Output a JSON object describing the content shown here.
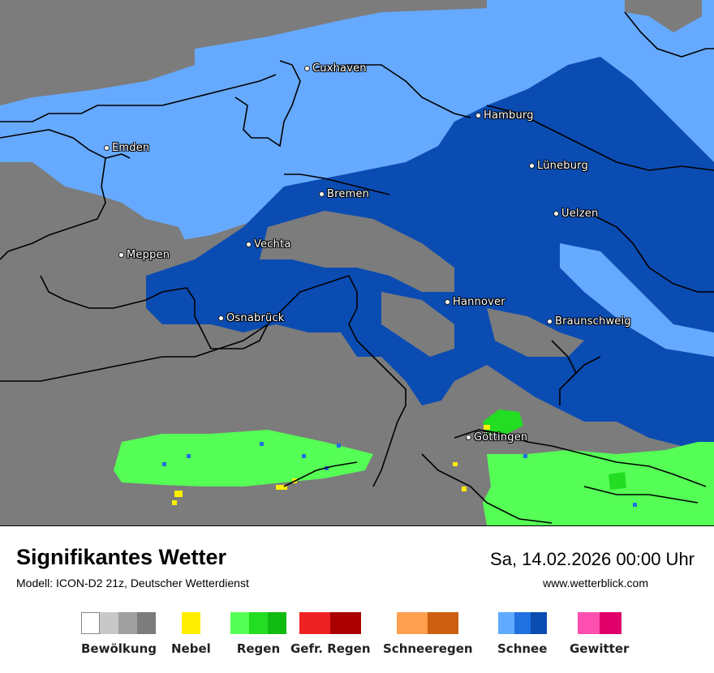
{
  "title": "Signifikantes Wetter",
  "model": "Modell: ICON-D2 21z, Deutscher Wetterdienst",
  "datetime": "Sa, 14.02.2026 00:00 Uhr",
  "website": "www.wetterblick.com",
  "cities": [
    {
      "name": "Cuxhaven"
    },
    {
      "name": "Hamburg"
    },
    {
      "name": "Emden"
    },
    {
      "name": "Lüneburg"
    },
    {
      "name": "Bremen"
    },
    {
      "name": "Uelzen"
    },
    {
      "name": "Vechta"
    },
    {
      "name": "Meppen"
    },
    {
      "name": "Hannover"
    },
    {
      "name": "Osnabrück"
    },
    {
      "name": "Braunschweig"
    },
    {
      "name": "Göttingen"
    }
  ],
  "legend": [
    {
      "label": "Bewölkung",
      "colors": [
        "#ffffff",
        "#c8c8c8",
        "#a0a0a0",
        "#7c7c7c"
      ]
    },
    {
      "label": "Nebel",
      "colors": [
        "#ffee00"
      ]
    },
    {
      "label": "Regen",
      "colors": [
        "#55ff55",
        "#22dd22",
        "#11bb11"
      ]
    },
    {
      "label": "Gefr. Regen",
      "colors": [
        "#ee2222",
        "#aa0000"
      ]
    },
    {
      "label": "Schneeregen",
      "colors": [
        "#ffa050",
        "#cc6010"
      ]
    },
    {
      "label": "Schnee",
      "colors": [
        "#60aaff",
        "#2070e0",
        "#0a4cb0"
      ]
    },
    {
      "label": "Gewitter",
      "colors": [
        "#ff4fb0",
        "#e0006a"
      ]
    }
  ],
  "colors": {
    "cloud_dark": "#7c7c7c",
    "snow_light": "#66aaff",
    "snow_dark": "#0b4cb2",
    "rain_light": "#55ff55",
    "rain_mid": "#22dd22",
    "fog": "#ffee00"
  }
}
